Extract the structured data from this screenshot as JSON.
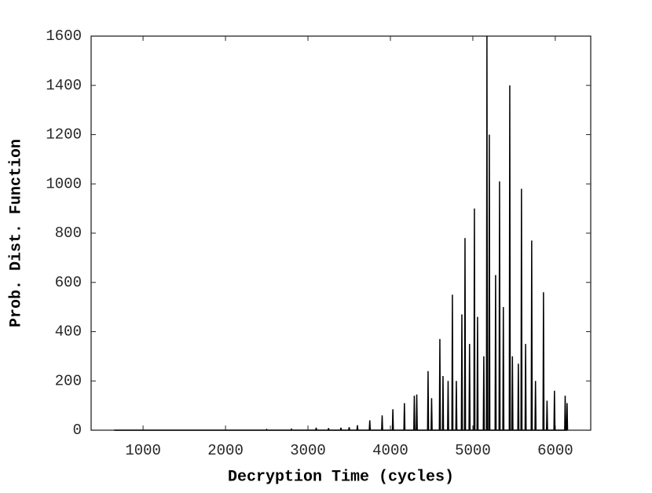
{
  "chart_data": {
    "type": "line",
    "xlabel": "Decryption Time (cycles)",
    "ylabel": "Prob. Dist. Function",
    "xlim": [
      370,
      6430
    ],
    "ylim": [
      0,
      1600
    ],
    "xticks": [
      1000,
      2000,
      3000,
      4000,
      5000,
      6000
    ],
    "yticks": [
      0,
      200,
      400,
      600,
      800,
      1000,
      1200,
      1400,
      1600
    ],
    "color": "#000000",
    "x": [
      650,
      2494,
      2500,
      2506,
      2794,
      2800,
      2806,
      3094,
      3100,
      3106,
      3244,
      3250,
      3256,
      3394,
      3400,
      3406,
      3494,
      3500,
      3506,
      3594,
      3600,
      3606,
      3744,
      3750,
      3756,
      3894,
      3900,
      3906,
      4024,
      4030,
      4036,
      4164,
      4170,
      4176,
      4284,
      4290,
      4296,
      4314,
      4320,
      4326,
      4451,
      4457,
      4463,
      4494,
      4500,
      4506,
      4594,
      4600,
      4606,
      4632,
      4638,
      4644,
      4694,
      4700,
      4706,
      4746,
      4752,
      4758,
      4794,
      4800,
      4806,
      4861,
      4867,
      4873,
      4899,
      4905,
      4911,
      4954,
      4960,
      4966,
      5013,
      5019,
      5025,
      5051,
      5057,
      5063,
      5127,
      5133,
      5139,
      5165,
      5171,
      5177,
      5194,
      5200,
      5206,
      5270,
      5276,
      5282,
      5318,
      5324,
      5330,
      5364,
      5370,
      5376,
      5442,
      5448,
      5454,
      5474,
      5480,
      5486,
      5546,
      5552,
      5558,
      5584,
      5590,
      5596,
      5634,
      5640,
      5646,
      5708,
      5714,
      5720,
      5754,
      5760,
      5766,
      5851,
      5857,
      5863,
      5894,
      5900,
      5906,
      5984,
      5990,
      5996,
      6114,
      6120,
      6126,
      6137,
      6143,
      6149
    ],
    "values": [
      0,
      0,
      3,
      0,
      0,
      4,
      0,
      0,
      10,
      0,
      0,
      8,
      0,
      0,
      10,
      0,
      0,
      12,
      0,
      0,
      20,
      0,
      0,
      40,
      0,
      0,
      60,
      0,
      0,
      85,
      0,
      0,
      110,
      0,
      0,
      140,
      0,
      0,
      145,
      0,
      0,
      240,
      0,
      0,
      130,
      0,
      0,
      370,
      0,
      0,
      220,
      0,
      0,
      200,
      0,
      0,
      550,
      0,
      0,
      200,
      0,
      0,
      470,
      0,
      0,
      780,
      0,
      0,
      350,
      0,
      0,
      900,
      0,
      0,
      460,
      0,
      0,
      300,
      0,
      0,
      1600,
      0,
      0,
      1200,
      0,
      0,
      630,
      0,
      0,
      1010,
      0,
      0,
      500,
      0,
      0,
      1400,
      0,
      0,
      300,
      0,
      0,
      270,
      0,
      0,
      980,
      0,
      0,
      350,
      0,
      0,
      770,
      0,
      0,
      200,
      0,
      0,
      560,
      0,
      0,
      120,
      0,
      0,
      160,
      0,
      0,
      140,
      0,
      0,
      110,
      0
    ]
  }
}
